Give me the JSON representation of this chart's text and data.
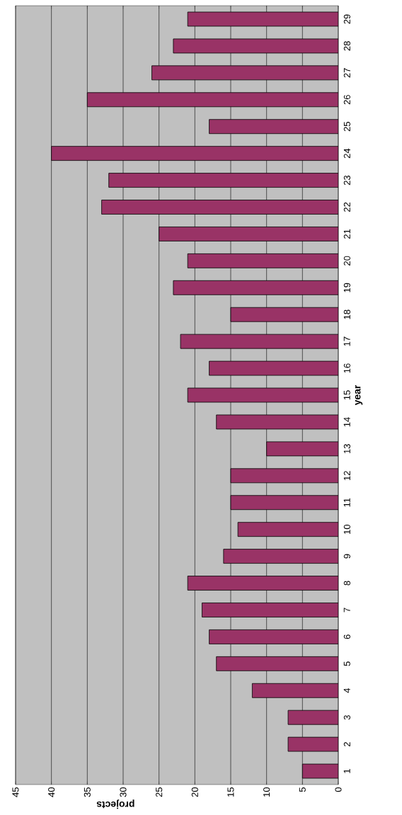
{
  "chart_data": {
    "type": "bar",
    "orientation": "horizontal",
    "xlabel": "projects",
    "ylabel": "year",
    "categories": [
      "29",
      "28",
      "27",
      "26",
      "25",
      "24",
      "23",
      "22",
      "21",
      "20",
      "19",
      "18",
      "17",
      "16",
      "15",
      "14",
      "13",
      "12",
      "11",
      "10",
      "9",
      "8",
      "7",
      "6",
      "5",
      "4",
      "3",
      "2",
      "1"
    ],
    "values": [
      21,
      23,
      26,
      35,
      18,
      40,
      32,
      33,
      25,
      21,
      23,
      15,
      22,
      18,
      21,
      17,
      10,
      15,
      15,
      14,
      16,
      21,
      19,
      18,
      17,
      12,
      7,
      7,
      5
    ],
    "color": "#993366",
    "xlim": [
      45,
      0
    ],
    "xticks": [
      0,
      5,
      10,
      15,
      20,
      25,
      30,
      35,
      40,
      45
    ],
    "grid": "x"
  }
}
